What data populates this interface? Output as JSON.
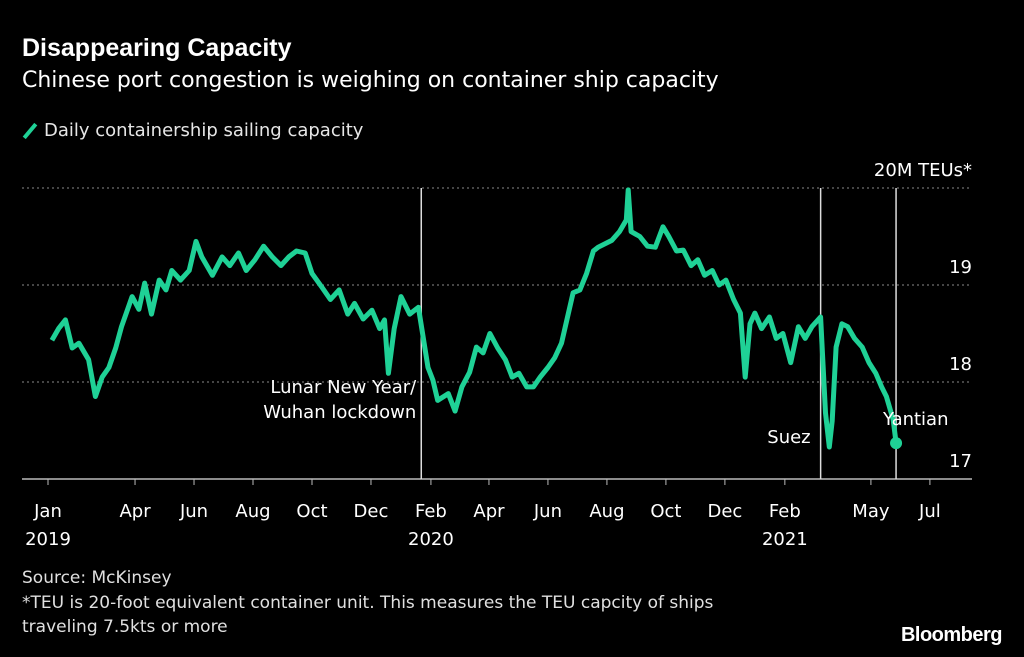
{
  "title": "Disappearing Capacity",
  "subtitle": "Chinese port congestion is weighing on container ship capacity",
  "legend": {
    "label": "Daily containership sailing capacity",
    "color": "#1fd196"
  },
  "source": "Source: McKinsey",
  "footnote_1": "*TEU is 20-foot equivalent container unit. This measures the TEU capcity of ships",
  "footnote_2": "traveling 7.5kts or more",
  "logo": "Bloomberg",
  "chart_data": {
    "type": "line",
    "title": "Disappearing Capacity",
    "ylabel": "20M TEUs*",
    "ylim": [
      17,
      20
    ],
    "yticks": [
      {
        "value": 20,
        "label": "20M TEUs*"
      },
      {
        "value": 19,
        "label": "19"
      },
      {
        "value": 18,
        "label": "18"
      },
      {
        "value": 17,
        "label": "17"
      }
    ],
    "y_axis_side": "right",
    "grid": "horizontal dotted",
    "xticks": [
      {
        "date": "2019-01-01",
        "month": "Jan",
        "year": "2019"
      },
      {
        "date": "2019-04-01",
        "month": "Apr",
        "year": ""
      },
      {
        "date": "2019-06-01",
        "month": "Jun",
        "year": ""
      },
      {
        "date": "2019-08-01",
        "month": "Aug",
        "year": ""
      },
      {
        "date": "2019-10-01",
        "month": "Oct",
        "year": ""
      },
      {
        "date": "2019-12-01",
        "month": "Dec",
        "year": ""
      },
      {
        "date": "2020-02-01",
        "month": "Feb",
        "year": "2020"
      },
      {
        "date": "2020-04-01",
        "month": "Apr",
        "year": ""
      },
      {
        "date": "2020-06-01",
        "month": "Jun",
        "year": ""
      },
      {
        "date": "2020-08-01",
        "month": "Aug",
        "year": ""
      },
      {
        "date": "2020-10-01",
        "month": "Oct",
        "year": ""
      },
      {
        "date": "2020-12-01",
        "month": "Dec",
        "year": ""
      },
      {
        "date": "2021-02-01",
        "month": "Feb",
        "year": "2021"
      },
      {
        "date": "2021-05-01",
        "month": "May",
        "year": ""
      },
      {
        "date": "2021-07-01",
        "month": "Jul",
        "year": ""
      }
    ],
    "xlim": [
      "2018-12-20",
      "2021-08-01"
    ],
    "series": [
      {
        "name": "Daily containership sailing capacity",
        "color": "#1fd196",
        "points": [
          [
            "2019-01-05",
            18.43
          ],
          [
            "2019-01-12",
            18.55
          ],
          [
            "2019-01-19",
            18.64
          ],
          [
            "2019-01-26",
            18.35
          ],
          [
            "2019-02-02",
            18.4
          ],
          [
            "2019-02-12",
            18.23
          ],
          [
            "2019-02-19",
            17.85
          ],
          [
            "2019-02-26",
            18.05
          ],
          [
            "2019-03-05",
            18.15
          ],
          [
            "2019-03-12",
            18.35
          ],
          [
            "2019-03-18",
            18.57
          ],
          [
            "2019-03-29",
            18.88
          ],
          [
            "2019-04-05",
            18.75
          ],
          [
            "2019-04-11",
            19.02
          ],
          [
            "2019-04-18",
            18.7
          ],
          [
            "2019-04-26",
            19.05
          ],
          [
            "2019-05-03",
            18.95
          ],
          [
            "2019-05-09",
            19.15
          ],
          [
            "2019-05-18",
            19.05
          ],
          [
            "2019-05-27",
            19.15
          ],
          [
            "2019-06-03",
            19.45
          ],
          [
            "2019-06-09",
            19.29
          ],
          [
            "2019-06-20",
            19.1
          ],
          [
            "2019-06-30",
            19.29
          ],
          [
            "2019-07-08",
            19.2
          ],
          [
            "2019-07-17",
            19.33
          ],
          [
            "2019-07-25",
            19.15
          ],
          [
            "2019-08-03",
            19.26
          ],
          [
            "2019-08-12",
            19.4
          ],
          [
            "2019-08-21",
            19.29
          ],
          [
            "2019-08-30",
            19.2
          ],
          [
            "2019-09-07",
            19.29
          ],
          [
            "2019-09-15",
            19.35
          ],
          [
            "2019-09-24",
            19.33
          ],
          [
            "2019-10-01",
            19.12
          ],
          [
            "2019-10-11",
            18.98
          ],
          [
            "2019-10-20",
            18.85
          ],
          [
            "2019-10-29",
            18.95
          ],
          [
            "2019-11-07",
            18.7
          ],
          [
            "2019-11-14",
            18.81
          ],
          [
            "2019-11-23",
            18.65
          ],
          [
            "2019-12-02",
            18.74
          ],
          [
            "2019-12-10",
            18.55
          ],
          [
            "2019-12-15",
            18.64
          ],
          [
            "2019-12-19",
            18.09
          ],
          [
            "2019-12-25",
            18.55
          ],
          [
            "2020-01-01",
            18.88
          ],
          [
            "2020-01-10",
            18.7
          ],
          [
            "2020-01-19",
            18.77
          ],
          [
            "2020-01-29",
            18.15
          ],
          [
            "2020-02-03",
            18.02
          ],
          [
            "2020-02-08",
            17.81
          ],
          [
            "2020-02-19",
            17.88
          ],
          [
            "2020-02-26",
            17.7
          ],
          [
            "2020-03-04",
            17.95
          ],
          [
            "2020-03-12",
            18.1
          ],
          [
            "2020-03-19",
            18.36
          ],
          [
            "2020-03-26",
            18.3
          ],
          [
            "2020-04-02",
            18.5
          ],
          [
            "2020-04-10",
            18.35
          ],
          [
            "2020-04-18",
            18.23
          ],
          [
            "2020-04-25",
            18.05
          ],
          [
            "2020-05-02",
            18.09
          ],
          [
            "2020-05-10",
            17.95
          ],
          [
            "2020-05-17",
            17.95
          ],
          [
            "2020-05-24",
            18.05
          ],
          [
            "2020-06-01",
            18.15
          ],
          [
            "2020-06-08",
            18.25
          ],
          [
            "2020-06-15",
            18.4
          ],
          [
            "2020-06-27",
            18.92
          ],
          [
            "2020-07-04",
            18.95
          ],
          [
            "2020-07-11",
            19.12
          ],
          [
            "2020-07-18",
            19.35
          ],
          [
            "2020-07-23",
            19.39
          ],
          [
            "2020-08-06",
            19.46
          ],
          [
            "2020-08-14",
            19.55
          ],
          [
            "2020-08-21",
            19.67
          ],
          [
            "2020-08-23",
            19.98
          ],
          [
            "2020-08-26",
            19.55
          ],
          [
            "2020-09-04",
            19.5
          ],
          [
            "2020-09-12",
            19.4
          ],
          [
            "2020-09-20",
            19.39
          ],
          [
            "2020-09-28",
            19.6
          ],
          [
            "2020-10-04",
            19.5
          ],
          [
            "2020-10-12",
            19.35
          ],
          [
            "2020-10-19",
            19.36
          ],
          [
            "2020-10-27",
            19.2
          ],
          [
            "2020-11-03",
            19.26
          ],
          [
            "2020-11-10",
            19.1
          ],
          [
            "2020-11-18",
            19.15
          ],
          [
            "2020-11-25",
            19.0
          ],
          [
            "2020-12-02",
            19.05
          ],
          [
            "2020-12-10",
            18.85
          ],
          [
            "2020-12-17",
            18.71
          ],
          [
            "2020-12-22",
            18.05
          ],
          [
            "2020-12-27",
            18.6
          ],
          [
            "2021-01-01",
            18.71
          ],
          [
            "2021-01-08",
            18.55
          ],
          [
            "2021-01-16",
            18.67
          ],
          [
            "2021-01-23",
            18.45
          ],
          [
            "2021-01-30",
            18.5
          ],
          [
            "2021-02-07",
            18.2
          ],
          [
            "2021-02-15",
            18.57
          ],
          [
            "2021-02-22",
            18.45
          ],
          [
            "2021-03-01",
            18.57
          ],
          [
            "2021-03-10",
            18.67
          ],
          [
            "2021-03-15",
            17.68
          ],
          [
            "2021-03-19",
            17.33
          ],
          [
            "2021-03-22",
            17.6
          ],
          [
            "2021-03-26",
            18.36
          ],
          [
            "2021-04-01",
            18.6
          ],
          [
            "2021-04-07",
            18.57
          ],
          [
            "2021-04-14",
            18.45
          ],
          [
            "2021-04-22",
            18.36
          ],
          [
            "2021-04-29",
            18.2
          ],
          [
            "2021-05-06",
            18.09
          ],
          [
            "2021-05-12",
            17.95
          ],
          [
            "2021-05-17",
            17.85
          ],
          [
            "2021-05-24",
            17.61
          ],
          [
            "2021-05-27",
            17.37
          ]
        ],
        "end_marker": {
          "date": "2021-05-27",
          "value": 17.37
        }
      }
    ],
    "annotations": [
      {
        "date": "2020-01-22",
        "lines": [
          "Lunar New Year/",
          "Wuhan lockdown"
        ]
      },
      {
        "date": "2021-03-10",
        "lines": [
          "Suez"
        ]
      },
      {
        "date": "2021-05-27",
        "lines": [
          "Yantian"
        ]
      }
    ]
  }
}
